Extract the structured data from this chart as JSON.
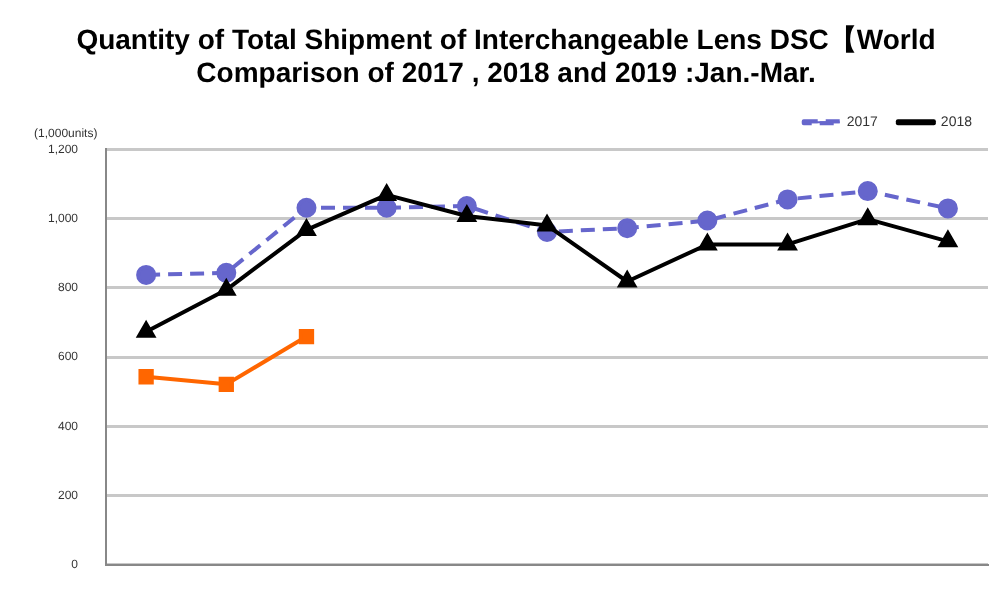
{
  "chart_data": {
    "type": "line",
    "title": [
      "Quantity of Total Shipment of Interchangeable Lens DSC【World",
      "Comparison of 2017 , 2018 and 2019 :Jan.-Mar."
    ],
    "ylabel": "(1,000units)",
    "categories": [
      null,
      null,
      null,
      null,
      null,
      null,
      null,
      null,
      null,
      null,
      null
    ],
    "series": [
      {
        "name": "2017",
        "color": "#6666cc",
        "marker": "circle",
        "line_style": "dashed",
        "values": [
          837,
          843,
          1031,
          1031,
          1036,
          961,
          972,
          994,
          1055,
          1079,
          1029
        ]
      },
      {
        "name": "2018",
        "color": "#000000",
        "marker": "triangle",
        "line_style": "solid",
        "values": [
          673,
          794,
          967,
          1068,
          1007,
          980,
          818,
          925,
          925,
          998,
          934
        ]
      },
      {
        "color": "#ff6600",
        "marker": "square",
        "line_style": "solid",
        "values": [
          543,
          521,
          659,
          null,
          null,
          null,
          null,
          null,
          null,
          null,
          null
        ]
      }
    ],
    "ylim": [
      0,
      1200
    ],
    "yticks": [
      0,
      {
        "value": 200,
        "label": "200"
      },
      {
        "value": 400,
        "label": "400"
      },
      {
        "value": 600,
        "label": "600"
      },
      {
        "value": 800,
        "label": "800"
      },
      {
        "value": 1000,
        "label": "1,000"
      },
      {
        "value": 1200,
        "label": "1,200"
      }
    ],
    "grid": "y",
    "legend": "top right",
    "tick_labels": "y"
  }
}
